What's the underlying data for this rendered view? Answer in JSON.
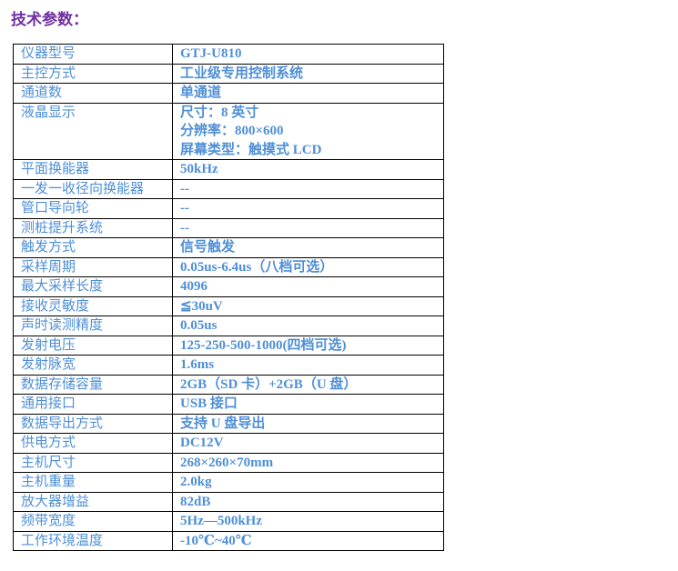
{
  "title": "技术参数：",
  "rows": [
    {
      "label": "仪器型号",
      "value": [
        "GTJ-U810"
      ]
    },
    {
      "label": "主控方式",
      "value": [
        "工业级专用控制系统"
      ]
    },
    {
      "label": "通道数",
      "value": [
        "单通道"
      ]
    },
    {
      "label": "液晶显示",
      "value": [
        "尺寸：8 英寸",
        "分辨率：800×600",
        "屏幕类型：触摸式 LCD"
      ]
    },
    {
      "label": "平面换能器",
      "value": [
        "50kHz"
      ]
    },
    {
      "label": "一发一收径向换能器",
      "value": [
        "--"
      ]
    },
    {
      "label": "管口导向轮",
      "value": [
        "--"
      ]
    },
    {
      "label": "测桩提升系统",
      "value": [
        "--"
      ]
    },
    {
      "label": "触发方式",
      "value": [
        "信号触发"
      ]
    },
    {
      "label": "采样周期",
      "value": [
        "0.05us-6.4us（八档可选）"
      ]
    },
    {
      "label": "最大采样长度",
      "value": [
        "4096"
      ]
    },
    {
      "label": "接收灵敏度",
      "value": [
        "≦30uV"
      ]
    },
    {
      "label": "声时读测精度",
      "value": [
        "0.05us"
      ]
    },
    {
      "label": "发射电压",
      "value": [
        "125-250-500-1000(四档可选)"
      ]
    },
    {
      "label": "发射脉宽",
      "value": [
        "1.6ms"
      ]
    },
    {
      "label": "数据存储容量",
      "value": [
        "2GB（SD 卡）+2GB（U 盘）"
      ]
    },
    {
      "label": "通用接口",
      "value": [
        "USB 接口"
      ]
    },
    {
      "label": "数据导出方式",
      "value": [
        "支持 U 盘导出"
      ]
    },
    {
      "label": "供电方式",
      "value": [
        "DC12V"
      ]
    },
    {
      "label": "主机尺寸",
      "value": [
        "268×260×70mm"
      ]
    },
    {
      "label": "主机重量",
      "value": [
        "2.0kg"
      ]
    },
    {
      "label": "放大器增益",
      "value": [
        "82dB"
      ]
    },
    {
      "label": "频带宽度",
      "value": [
        "5Hz—500kHz"
      ]
    },
    {
      "label": "工作环境温度",
      "value": [
        "-10℃~40℃"
      ]
    }
  ]
}
